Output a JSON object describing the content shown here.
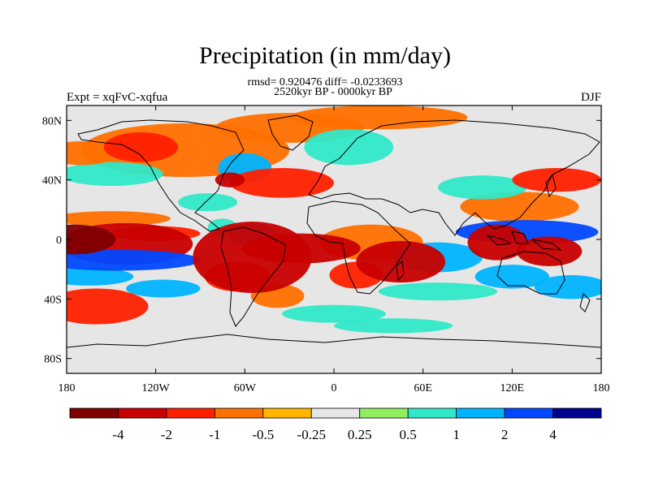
{
  "chart_data": {
    "type": "heatmap",
    "title": "Precipitation (in mm/day)",
    "stats_line": "rmsd= 0.920476 diff= -0.0233693",
    "period_line": "2520kyr BP - 0000kyr BP",
    "left_label": "Expt = xqFvC-xqfua",
    "right_label": "DJF",
    "x_range": [
      -180,
      180
    ],
    "y_range": [
      -90,
      90
    ],
    "x_ticks": [
      {
        "v": -180,
        "label": "180"
      },
      {
        "v": -120,
        "label": "120W"
      },
      {
        "v": -60,
        "label": "60W"
      },
      {
        "v": 0,
        "label": "0"
      },
      {
        "v": 60,
        "label": "60E"
      },
      {
        "v": 120,
        "label": "120E"
      },
      {
        "v": 180,
        "label": "180"
      }
    ],
    "y_ticks": [
      {
        "v": 80,
        "label": "80N"
      },
      {
        "v": 40,
        "label": "40N"
      },
      {
        "v": 0,
        "label": "0"
      },
      {
        "v": -40,
        "label": "40S"
      },
      {
        "v": -80,
        "label": "80S"
      }
    ],
    "colorbar": {
      "colors": [
        "#800000",
        "#c80000",
        "#ff2000",
        "#ff7000",
        "#ffb400",
        "#e6e6e6",
        "#90ee60",
        "#30e8c8",
        "#00b4ff",
        "#0048ff",
        "#000090"
      ],
      "labels": [
        "-4",
        "-2",
        "-1",
        "-0.5",
        "-0.25",
        "0.25",
        "0.5",
        "1",
        "2",
        "4"
      ]
    },
    "anomaly_regions": [
      {
        "lon": -175,
        "lat": 0,
        "w": 28,
        "h": 10,
        "level": -4
      },
      {
        "lon": -140,
        "lat": -3,
        "w": 45,
        "h": 14,
        "level": -2
      },
      {
        "lon": -120,
        "lat": 4,
        "w": 30,
        "h": 5,
        "level": -1
      },
      {
        "lon": -145,
        "lat": -14,
        "w": 55,
        "h": 7,
        "level": 2
      },
      {
        "lon": -165,
        "lat": -25,
        "w": 30,
        "h": 6,
        "level": 1
      },
      {
        "lon": -150,
        "lat": 14,
        "w": 40,
        "h": 5,
        "level": -0.5
      },
      {
        "lon": -160,
        "lat": -45,
        "w": 35,
        "h": 12,
        "level": -1
      },
      {
        "lon": -115,
        "lat": -33,
        "w": 25,
        "h": 6,
        "level": 1
      },
      {
        "lon": -55,
        "lat": -12,
        "w": 40,
        "h": 24,
        "level": -2
      },
      {
        "lon": -65,
        "lat": -25,
        "w": 22,
        "h": 10,
        "level": -1
      },
      {
        "lon": -38,
        "lat": -38,
        "w": 18,
        "h": 8,
        "level": -0.5
      },
      {
        "lon": -22,
        "lat": -6,
        "w": 40,
        "h": 10,
        "level": -2
      },
      {
        "lon": -55,
        "lat": 3,
        "w": 16,
        "h": 8,
        "level": 1
      },
      {
        "lon": -75,
        "lat": 8,
        "w": 10,
        "h": 6,
        "level": 0.5
      },
      {
        "lon": -85,
        "lat": 25,
        "w": 20,
        "h": 6,
        "level": 0.5
      },
      {
        "lon": -100,
        "lat": 60,
        "w": 70,
        "h": 18,
        "level": -0.5
      },
      {
        "lon": -130,
        "lat": 62,
        "w": 25,
        "h": 10,
        "level": -1
      },
      {
        "lon": -60,
        "lat": 48,
        "w": 18,
        "h": 10,
        "level": 1
      },
      {
        "lon": -35,
        "lat": 38,
        "w": 35,
        "h": 10,
        "level": -1
      },
      {
        "lon": -70,
        "lat": 40,
        "w": 10,
        "h": 5,
        "level": -2
      },
      {
        "lon": -30,
        "lat": 75,
        "w": 50,
        "h": 10,
        "level": -0.5
      },
      {
        "lon": 10,
        "lat": 62,
        "w": 30,
        "h": 12,
        "level": 0.5
      },
      {
        "lon": 30,
        "lat": 82,
        "w": 60,
        "h": 8,
        "level": -0.5
      },
      {
        "lon": -150,
        "lat": 44,
        "w": 35,
        "h": 8,
        "level": 0.5
      },
      {
        "lon": -170,
        "lat": 58,
        "w": 25,
        "h": 8,
        "level": -0.5
      },
      {
        "lon": 25,
        "lat": -2,
        "w": 35,
        "h": 12,
        "level": -0.5
      },
      {
        "lon": 45,
        "lat": -15,
        "w": 30,
        "h": 14,
        "level": -2
      },
      {
        "lon": 15,
        "lat": -24,
        "w": 18,
        "h": 9,
        "level": -1
      },
      {
        "lon": 70,
        "lat": -12,
        "w": 30,
        "h": 10,
        "level": 1
      },
      {
        "lon": 70,
        "lat": -35,
        "w": 40,
        "h": 6,
        "level": 0.5
      },
      {
        "lon": 130,
        "lat": 5,
        "w": 48,
        "h": 8,
        "level": 2
      },
      {
        "lon": 110,
        "lat": -2,
        "w": 20,
        "h": 12,
        "level": -2
      },
      {
        "lon": 145,
        "lat": -8,
        "w": 22,
        "h": 10,
        "level": -2
      },
      {
        "lon": 125,
        "lat": 22,
        "w": 40,
        "h": 10,
        "level": -0.5
      },
      {
        "lon": 120,
        "lat": -25,
        "w": 25,
        "h": 8,
        "level": 1
      },
      {
        "lon": 160,
        "lat": -32,
        "w": 25,
        "h": 8,
        "level": 1
      },
      {
        "lon": 150,
        "lat": 40,
        "w": 30,
        "h": 8,
        "level": -1
      },
      {
        "lon": 100,
        "lat": 35,
        "w": 30,
        "h": 8,
        "level": 0.5
      },
      {
        "lon": 0,
        "lat": -50,
        "w": 35,
        "h": 6,
        "level": 0.5
      },
      {
        "lon": 40,
        "lat": -58,
        "w": 40,
        "h": 5,
        "level": 0.5
      }
    ]
  }
}
